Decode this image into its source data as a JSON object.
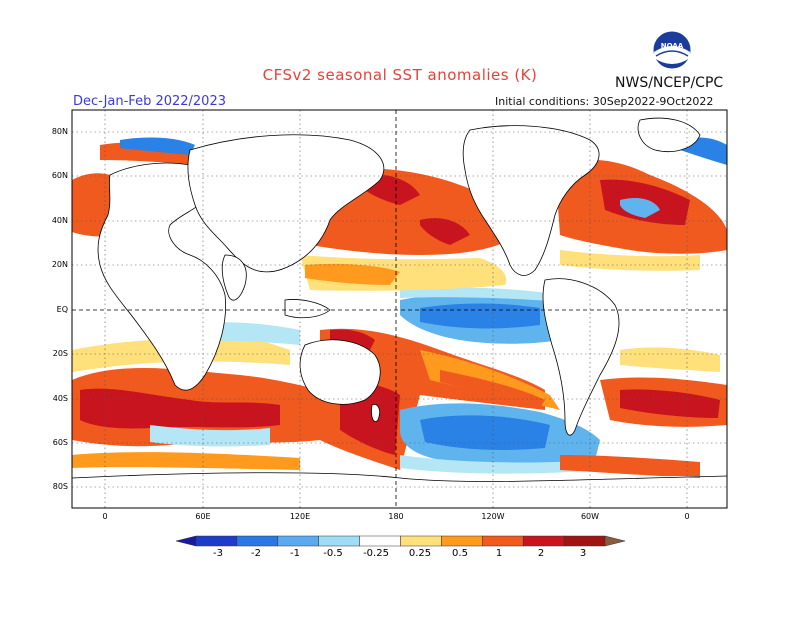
{
  "header": {
    "title": "CFSv2 seasonal SST anomalies (K)",
    "period": "Dec-Jan-Feb 2022/2023",
    "initial_conditions": "Initial conditions: 30Sep2022-9Oct2022",
    "agency": "NWS/NCEP/CPC",
    "logo_text": "NOAA"
  },
  "map": {
    "lat_labels": [
      "80N",
      "60N",
      "40N",
      "20N",
      "EQ",
      "20S",
      "40S",
      "60S",
      "80S"
    ],
    "lon_labels": [
      "0",
      "60E",
      "120E",
      "180",
      "120W",
      "60W",
      "0"
    ],
    "colors": {
      "land": "#ffffff",
      "ocean_neutral": "#ffffff",
      "warm_strong": "#c8141e",
      "warm_mid": "#f05a1e",
      "warm_light": "#ff9a1e",
      "warm_pale": "#ffe07a",
      "cool_pale": "#b4e6f5",
      "cool_light": "#5fb4ee",
      "cool_mid": "#2a82e6"
    }
  },
  "colorbar": {
    "labels": [
      "-3",
      "-2",
      "-1",
      "-0.5",
      "-0.25",
      "0.25",
      "0.5",
      "1",
      "2",
      "3"
    ],
    "colors": [
      "#1a1aa0",
      "#1e3cc8",
      "#2a78e6",
      "#5aaaf0",
      "#a0dcf5",
      "#ffffff",
      "#ffe07a",
      "#ff9a1e",
      "#f05a1e",
      "#c8141e",
      "#a01414",
      "#8c5a3c"
    ]
  }
}
